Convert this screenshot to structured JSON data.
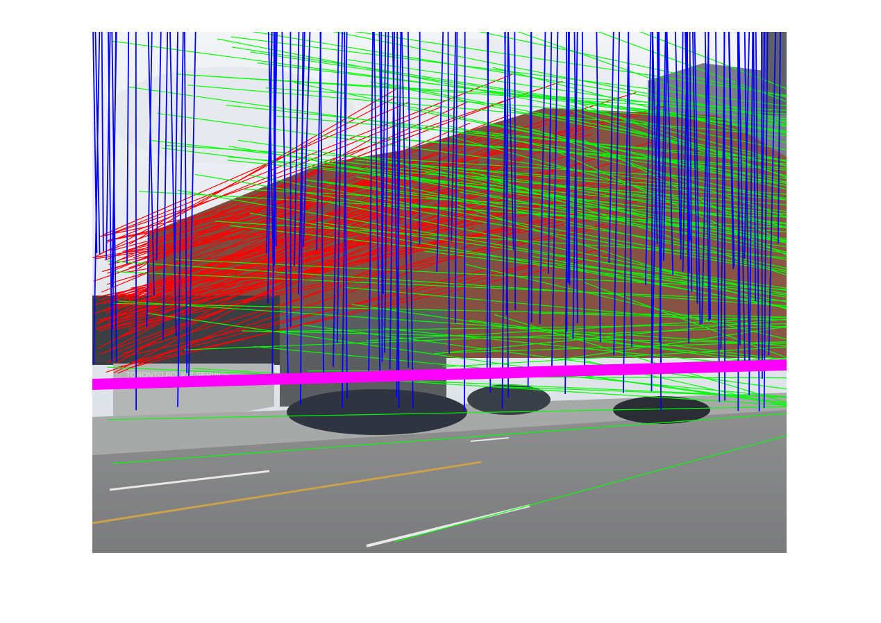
{
  "figure": {
    "description_free": true,
    "sign_text": "TORONTO POLICE SERVICE",
    "line_colors": {
      "vertical_segments": "#0000ff",
      "leftward_segments": "#ff0000",
      "rightward_segments": "#00ff00",
      "horizon_line": "#ff00ff"
    }
  }
}
